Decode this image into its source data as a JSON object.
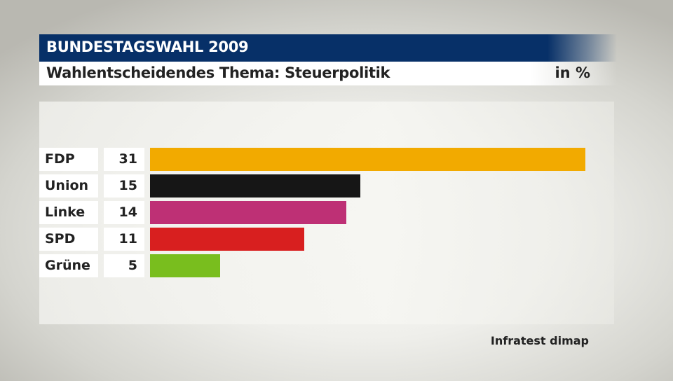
{
  "header": {
    "title": "BUNDESTAGSWAHL 2009",
    "subtitle": "Wahlentscheidendes Thema: Steuerpolitik",
    "unit": "in %"
  },
  "source": "Infratest dimap",
  "rows": [
    {
      "label": "FDP",
      "value": "31",
      "color": "#f2aa00"
    },
    {
      "label": "Union",
      "value": "15",
      "color": "#161616"
    },
    {
      "label": "Linke",
      "value": "14",
      "color": "#be3075"
    },
    {
      "label": "SPD",
      "value": "11",
      "color": "#d81f1f"
    },
    {
      "label": "Grüne",
      "value": "5",
      "color": "#79be1e"
    }
  ],
  "chart_data": {
    "type": "bar",
    "orientation": "horizontal",
    "title": "BUNDESTAGSWAHL 2009",
    "subtitle": "Wahlentscheidendes Thema: Steuerpolitik",
    "unit": "in %",
    "categories": [
      "FDP",
      "Union",
      "Linke",
      "SPD",
      "Grüne"
    ],
    "values": [
      31,
      15,
      14,
      11,
      5
    ],
    "colors": [
      "#f2aa00",
      "#161616",
      "#be3075",
      "#d81f1f",
      "#79be1e"
    ],
    "xlabel": "",
    "ylabel": "",
    "xlim": [
      0,
      31
    ],
    "grid": false,
    "legend": "none",
    "source": "Infratest dimap"
  }
}
